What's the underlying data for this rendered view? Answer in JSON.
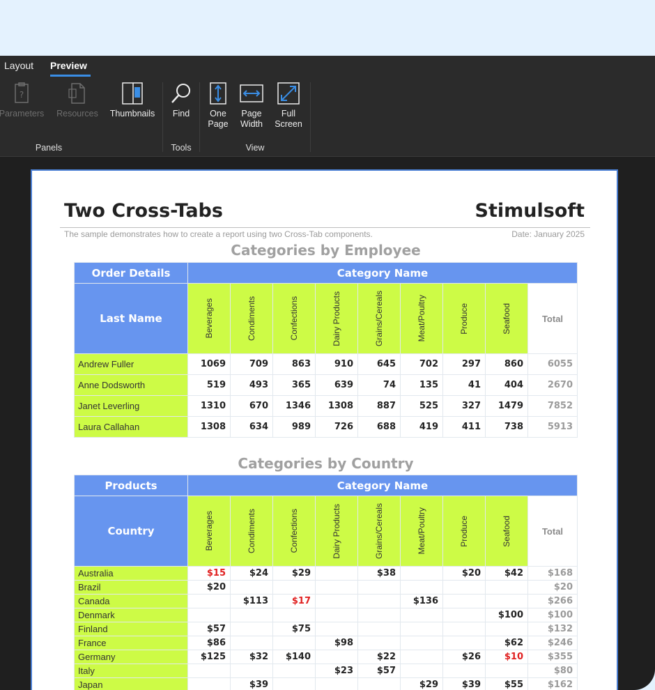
{
  "tabs": [
    {
      "label": "Layout",
      "active": false
    },
    {
      "label": "Preview",
      "active": true
    }
  ],
  "ribbon": {
    "buttons": {
      "parameters": "Parameters",
      "resources": "Resources",
      "thumbnails": "Thumbnails",
      "find": "Find",
      "one_page_1": "One",
      "one_page_2": "Page",
      "page_width_1": "Page",
      "page_width_2": "Width",
      "full_screen_1": "Full",
      "full_screen_2": "Screen"
    },
    "groups": {
      "panels": "Panels",
      "tools": "Tools",
      "view": "View"
    }
  },
  "report": {
    "title": "Two Cross-Tabs",
    "brand": "Stimulsoft",
    "description": "The sample demonstrates how to create a report using two Cross-Tab components.",
    "date": "Date: January 2025",
    "categories": [
      "Beverages",
      "Condiments",
      "Confections",
      "Dairy Products",
      "Grains/Cereals",
      "Meat/Poultry",
      "Produce",
      "Seafood"
    ],
    "total_label": "Total",
    "category_name_label": "Category Name",
    "employee": {
      "section_title": "Categories by Employee",
      "corner_top": "Order Details",
      "corner_main": "Last Name",
      "rows": [
        {
          "name": "Andrew Fuller",
          "values": [
            "1069",
            "709",
            "863",
            "910",
            "645",
            "702",
            "297",
            "860"
          ],
          "total": "6055"
        },
        {
          "name": "Anne Dodsworth",
          "values": [
            "519",
            "493",
            "365",
            "639",
            "74",
            "135",
            "41",
            "404"
          ],
          "total": "2670"
        },
        {
          "name": "Janet Leverling",
          "values": [
            "1310",
            "670",
            "1346",
            "1308",
            "887",
            "525",
            "327",
            "1479"
          ],
          "total": "7852"
        },
        {
          "name": "Laura Callahan",
          "values": [
            "1308",
            "634",
            "989",
            "726",
            "688",
            "419",
            "411",
            "738"
          ],
          "total": "5913"
        }
      ]
    },
    "country": {
      "section_title": "Categories by Country",
      "corner_top": "Products",
      "corner_main": "Country",
      "rows": [
        {
          "name": "Australia",
          "values": [
            "$15",
            "$24",
            "$29",
            "",
            "$38",
            "",
            "$20",
            "$42"
          ],
          "red": [
            0
          ],
          "total": "$168"
        },
        {
          "name": "Brazil",
          "values": [
            "$20",
            "",
            "",
            "",
            "",
            "",
            "",
            ""
          ],
          "red": [],
          "total": "$20"
        },
        {
          "name": "Canada",
          "values": [
            "",
            "$113",
            "$17",
            "",
            "",
            "$136",
            "",
            ""
          ],
          "red": [
            2
          ],
          "total": "$266"
        },
        {
          "name": "Denmark",
          "values": [
            "",
            "",
            "",
            "",
            "",
            "",
            "",
            "$100"
          ],
          "red": [],
          "total": "$100"
        },
        {
          "name": "Finland",
          "values": [
            "$57",
            "",
            "$75",
            "",
            "",
            "",
            "",
            ""
          ],
          "red": [],
          "total": "$132"
        },
        {
          "name": "France",
          "values": [
            "$86",
            "",
            "",
            "$98",
            "",
            "",
            "",
            "$62"
          ],
          "red": [],
          "total": "$246"
        },
        {
          "name": "Germany",
          "values": [
            "$125",
            "$32",
            "$140",
            "",
            "$22",
            "",
            "$26",
            "$10"
          ],
          "red": [
            7
          ],
          "total": "$355"
        },
        {
          "name": "Italy",
          "values": [
            "",
            "",
            "",
            "$23",
            "$57",
            "",
            "",
            ""
          ],
          "red": [],
          "total": "$80"
        },
        {
          "name": "Japan",
          "values": [
            "",
            "$39",
            "",
            "",
            "",
            "$29",
            "$39",
            "$55"
          ],
          "red": [],
          "total": "$162"
        }
      ]
    }
  }
}
